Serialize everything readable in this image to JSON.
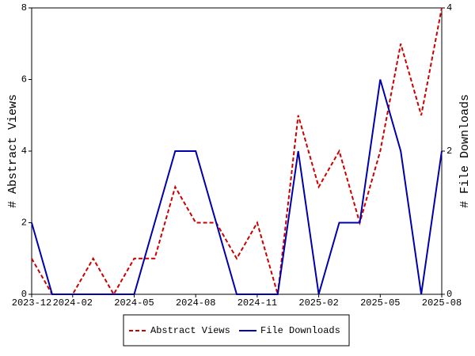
{
  "chart_data": {
    "type": "line",
    "categories": [
      "2023-12",
      null,
      "2024-02",
      null,
      null,
      "2024-05",
      null,
      null,
      "2024-08",
      null,
      null,
      "2024-11",
      null,
      null,
      "2025-02",
      null,
      null,
      "2025-05",
      null,
      null,
      "2025-08"
    ],
    "y_label": "# Abstract Views",
    "y2_label": "# File Downloads",
    "ylim": [
      0,
      8
    ],
    "yticks": [
      0,
      2,
      4,
      6,
      8
    ],
    "y2lim": [
      0,
      4
    ],
    "y2ticks": [
      0,
      2,
      4
    ],
    "legend": "bottom",
    "series": [
      {
        "name": "Abstract Views",
        "color": "#cc0000",
        "style": "dashed",
        "axis": "y",
        "values": [
          1,
          0,
          0,
          1,
          0,
          1,
          1,
          3,
          2,
          2,
          1,
          2,
          0,
          5,
          3,
          4,
          2,
          4,
          7,
          5,
          8
        ]
      },
      {
        "name": "File Downloads",
        "color": "#0000aa",
        "style": "solid",
        "axis": "y2",
        "values": [
          1,
          0,
          0,
          0,
          0,
          0,
          1,
          2,
          2,
          1,
          0,
          0,
          0,
          2,
          0,
          1,
          1,
          3,
          2,
          0,
          2
        ]
      }
    ]
  }
}
